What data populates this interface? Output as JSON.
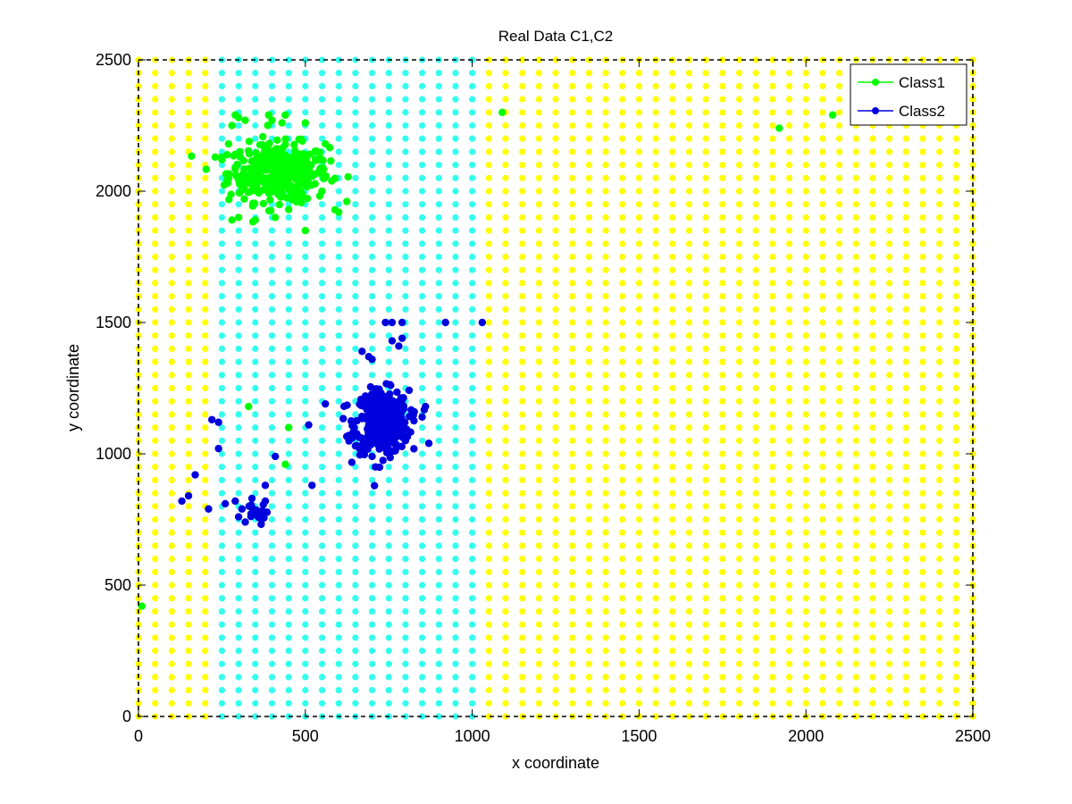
{
  "chart_data": {
    "type": "scatter",
    "title": "Real Data C1,C2",
    "xlabel": "x coordinate",
    "ylabel": "y coordinate",
    "xlim": [
      0,
      2500
    ],
    "ylim": [
      0,
      2500
    ],
    "xticks": [
      0,
      500,
      1000,
      1500,
      2000,
      2500
    ],
    "yticks": [
      0,
      500,
      1000,
      1500,
      2000,
      2500
    ],
    "grid": false,
    "legend_placement": "top-right",
    "background_grid": {
      "x_start": 0,
      "x_step": 50,
      "x_end": 2500,
      "y_start": 0,
      "y_step": 50,
      "y_end": 2500,
      "region_1_color": "#ffff00",
      "region_2_color": "#33ffee",
      "region_2_x_range": [
        250,
        1000
      ]
    },
    "series": [
      {
        "name": "Class1",
        "color": "#00ff00",
        "cluster": {
          "center": [
            420,
            2070
          ],
          "spread": [
            75,
            55
          ],
          "count": 380
        },
        "points": [
          [
            300,
            2280
          ],
          [
            320,
            2270
          ],
          [
            280,
            2250
          ],
          [
            290,
            2290
          ],
          [
            390,
            2290
          ],
          [
            400,
            2270
          ],
          [
            440,
            2290
          ],
          [
            430,
            2260
          ],
          [
            250,
            2120
          ],
          [
            230,
            2130
          ],
          [
            270,
            2180
          ],
          [
            560,
            2180
          ],
          [
            500,
            2260
          ],
          [
            600,
            1920
          ],
          [
            500,
            1850
          ],
          [
            280,
            1890
          ],
          [
            350,
            1890
          ],
          [
            300,
            1900
          ],
          [
            410,
            1900
          ],
          [
            450,
            1930
          ],
          [
            540,
            2120
          ],
          [
            1090,
            2300
          ],
          [
            1920,
            2240
          ],
          [
            2080,
            2290
          ],
          [
            10,
            420
          ],
          [
            330,
            1180
          ],
          [
            450,
            1100
          ],
          [
            440,
            960
          ]
        ]
      },
      {
        "name": "Class2",
        "color": "#0000dd",
        "cluster": {
          "center": [
            730,
            1120
          ],
          "spread": [
            40,
            60
          ],
          "count": 380
        },
        "cluster2": {
          "center": [
            350,
            770
          ],
          "spread": [
            15,
            20
          ],
          "count": 18
        },
        "points": [
          [
            740,
            1500
          ],
          [
            760,
            1500
          ],
          [
            790,
            1500
          ],
          [
            920,
            1500
          ],
          [
            1030,
            1500
          ],
          [
            760,
            1430
          ],
          [
            790,
            1440
          ],
          [
            780,
            1410
          ],
          [
            670,
            1390
          ],
          [
            690,
            1370
          ],
          [
            700,
            1360
          ],
          [
            560,
            1190
          ],
          [
            510,
            1110
          ],
          [
            630,
            1070
          ],
          [
            650,
            1030
          ],
          [
            800,
            1050
          ],
          [
            870,
            1040
          ],
          [
            850,
            1140
          ],
          [
            860,
            1180
          ],
          [
            680,
            1220
          ],
          [
            710,
            950
          ],
          [
            700,
            990
          ],
          [
            220,
            1130
          ],
          [
            240,
            1120
          ],
          [
            240,
            1020
          ],
          [
            170,
            920
          ],
          [
            130,
            820
          ],
          [
            150,
            840
          ],
          [
            210,
            790
          ],
          [
            260,
            810
          ],
          [
            290,
            820
          ],
          [
            310,
            790
          ],
          [
            340,
            830
          ],
          [
            380,
            820
          ],
          [
            380,
            880
          ],
          [
            410,
            990
          ],
          [
            520,
            880
          ],
          [
            320,
            740
          ],
          [
            300,
            760
          ]
        ]
      }
    ]
  }
}
